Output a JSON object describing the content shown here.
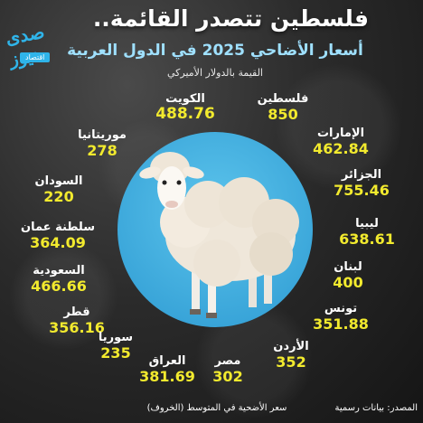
{
  "header": {
    "title": "فلسطين تتصدر القائمة..",
    "subtitle": "أسعار الأضاحي 2025 في الدول العربية",
    "note": "القيمة بالدولار الأميركي"
  },
  "logo": {
    "wordmark": "صدى نيوز",
    "tag": "اقتصاد",
    "color": "#2fb4e9"
  },
  "countries": [
    {
      "name": "فلسطين",
      "value": "850"
    },
    {
      "name": "الكويت",
      "value": "488.76"
    },
    {
      "name": "موريتانيا",
      "value": "278"
    },
    {
      "name": "الإمارات",
      "value": "462.84"
    },
    {
      "name": "السودان",
      "value": "220"
    },
    {
      "name": "الجزائر",
      "value": "755.46"
    },
    {
      "name": "سلطنة عمان",
      "value": "364.09"
    },
    {
      "name": "ليبيا",
      "value": "638.61"
    },
    {
      "name": "السعودية",
      "value": "466.66"
    },
    {
      "name": "لبنان",
      "value": "400"
    },
    {
      "name": "قطر",
      "value": "356.16"
    },
    {
      "name": "تونس",
      "value": "351.88"
    },
    {
      "name": "سوريا",
      "value": "235"
    },
    {
      "name": "الأردن",
      "value": "352"
    },
    {
      "name": "العراق",
      "value": "381.69"
    },
    {
      "name": "مصر",
      "value": "302"
    }
  ],
  "footer": {
    "note": "سعر الأضحية في المتوسط (الخروف)",
    "source": "المصدر: بيانات رسمية"
  },
  "colors": {
    "value": "#f2ea2e",
    "accent": "#9fe0ff",
    "circle": "#3aaee0"
  }
}
